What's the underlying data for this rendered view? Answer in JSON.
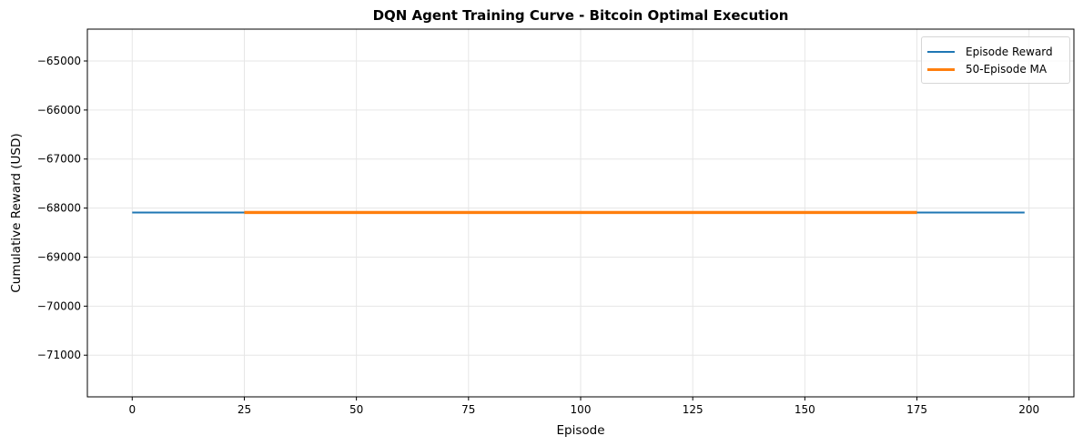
{
  "chart_data": {
    "type": "line",
    "title": "DQN Agent Training Curve - Bitcoin Optimal Execution",
    "xlabel": "Episode",
    "ylabel": "Cumulative Reward (USD)",
    "xlim": [
      -10,
      210
    ],
    "ylim": [
      -71850,
      -64350
    ],
    "x_ticks": [
      0,
      25,
      50,
      75,
      100,
      125,
      150,
      175,
      200
    ],
    "y_ticks": [
      -65000,
      -66000,
      -67000,
      -68000,
      -69000,
      -70000,
      -71000
    ],
    "y_tick_labels": [
      "−65000",
      "−66000",
      "−67000",
      "−68000",
      "−69000",
      "−70000",
      "−71000"
    ],
    "grid": true,
    "legend_position": "upper right",
    "series": [
      {
        "name": "Episode Reward",
        "color": "#1f77b4",
        "linewidth": 1.5,
        "x_range": [
          0,
          199
        ],
        "constant_value": -68090,
        "description": "Flat line across all 200 episodes at approximately -68090"
      },
      {
        "name": "50-Episode MA",
        "color": "#ff7f0e",
        "linewidth": 2.5,
        "x_range": [
          25,
          175
        ],
        "constant_value": -68090,
        "description": "Centered 50-episode moving average, flat at approximately -68090"
      }
    ]
  },
  "legend": {
    "items": [
      {
        "label": "Episode Reward",
        "color": "#1f77b4"
      },
      {
        "label": "50-Episode MA",
        "color": "#ff7f0e"
      }
    ]
  }
}
